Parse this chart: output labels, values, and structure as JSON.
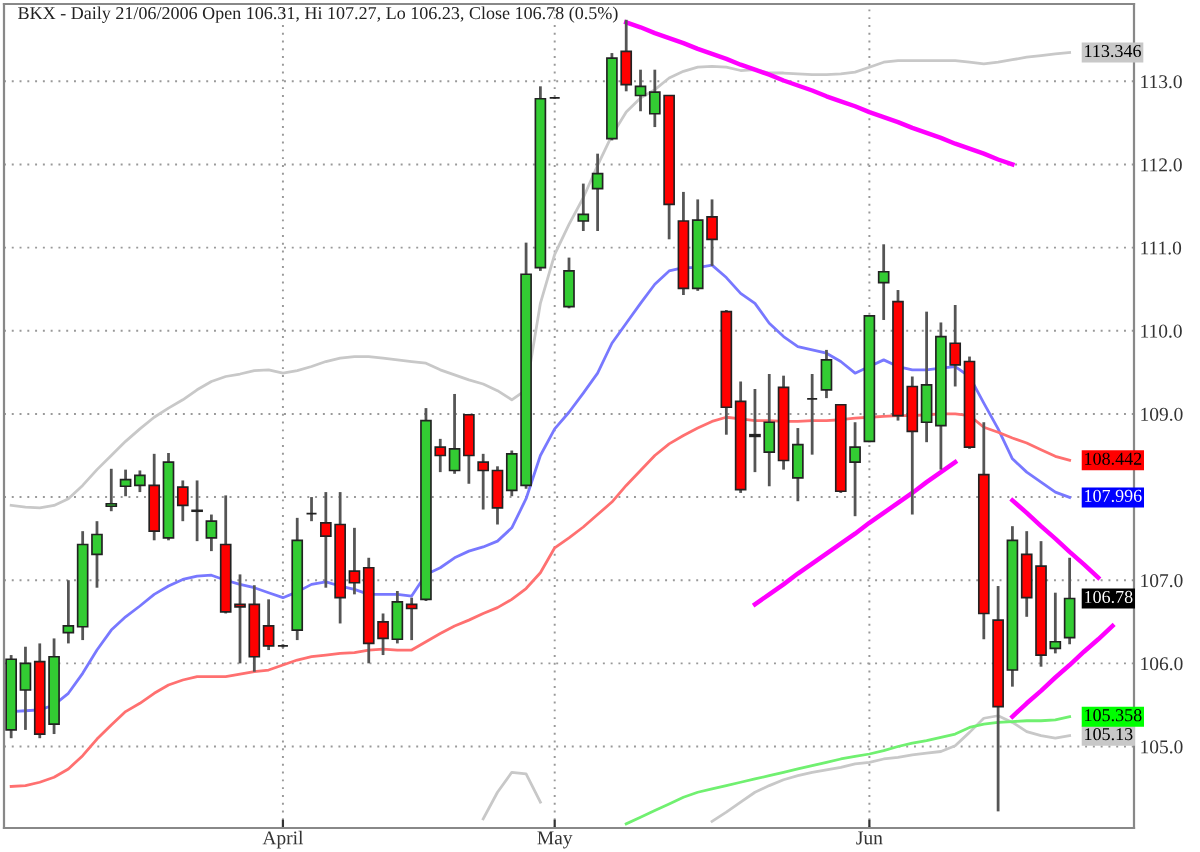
{
  "chart_data": {
    "type": "candlestick",
    "title": "BKX - Daily 21/06/2006 Open 106.31, Hi 107.27, Lo 106.23, Close 106.78 (0.5%)",
    "categories": [
      null,
      null,
      null,
      null,
      null,
      null,
      null,
      null,
      null,
      null,
      null,
      null,
      null,
      null,
      null,
      null,
      null,
      null,
      null,
      "April",
      null,
      null,
      null,
      null,
      null,
      null,
      null,
      null,
      null,
      null,
      null,
      null,
      null,
      null,
      null,
      null,
      null,
      null,
      "May",
      null,
      null,
      null,
      null,
      null,
      null,
      null,
      null,
      null,
      null,
      null,
      null,
      null,
      null,
      null,
      null,
      null,
      null,
      null,
      null,
      null,
      "Jun",
      null,
      null,
      null,
      null,
      null,
      null,
      null,
      null,
      null,
      null,
      null,
      null,
      null,
      null,
      null,
      null,
      null,
      null
    ],
    "ohlc": [
      [
        105.2,
        106.1,
        105.1,
        106.05
      ],
      [
        105.68,
        106.2,
        105.2,
        106.0
      ],
      [
        106.02,
        106.24,
        105.1,
        105.15
      ],
      [
        105.27,
        106.3,
        105.15,
        106.08
      ],
      [
        106.37,
        107.0,
        106.24,
        106.45
      ],
      [
        106.44,
        107.59,
        106.28,
        107.43
      ],
      [
        107.31,
        107.71,
        106.91,
        107.55
      ],
      [
        107.89,
        108.34,
        107.83,
        107.92
      ],
      [
        108.13,
        108.33,
        108.01,
        108.21
      ],
      [
        108.14,
        108.32,
        108.06,
        108.26
      ],
      [
        108.14,
        108.52,
        107.48,
        107.59
      ],
      [
        107.51,
        108.53,
        107.48,
        108.42
      ],
      [
        108.12,
        108.2,
        107.71,
        107.9
      ],
      [
        107.84,
        108.2,
        107.47,
        107.83
      ],
      [
        107.51,
        107.79,
        107.35,
        107.71
      ],
      [
        107.43,
        108.02,
        106.6,
        106.62
      ],
      [
        106.71,
        107.07,
        106.0,
        106.68
      ],
      [
        106.71,
        106.94,
        105.9,
        106.08
      ],
      [
        106.45,
        106.77,
        106.16,
        106.21
      ],
      [
        106.21,
        106.23,
        106.19,
        106.21
      ],
      [
        106.4,
        107.75,
        106.28,
        107.48
      ],
      [
        107.8,
        108.0,
        107.71,
        107.8
      ],
      [
        107.69,
        108.06,
        106.91,
        107.53
      ],
      [
        107.67,
        108.06,
        106.48,
        106.79
      ],
      [
        107.11,
        107.63,
        106.83,
        106.97
      ],
      [
        107.15,
        107.27,
        106.0,
        106.24
      ],
      [
        106.5,
        106.6,
        106.1,
        106.3
      ],
      [
        106.29,
        106.87,
        106.24,
        106.74
      ],
      [
        106.71,
        106.79,
        106.28,
        106.66
      ],
      [
        106.77,
        109.07,
        106.75,
        108.92
      ],
      [
        108.6,
        108.7,
        108.3,
        108.5
      ],
      [
        108.32,
        109.24,
        108.28,
        108.58
      ],
      [
        108.99,
        109.0,
        108.16,
        108.5
      ],
      [
        108.42,
        108.52,
        107.85,
        108.32
      ],
      [
        108.32,
        108.37,
        107.67,
        107.87
      ],
      [
        108.08,
        108.56,
        108.01,
        108.52
      ],
      [
        108.14,
        111.06,
        108.1,
        110.68
      ],
      [
        110.76,
        112.94,
        110.72,
        112.79
      ],
      [
        112.8,
        112.81,
        112.79,
        112.8
      ],
      [
        110.29,
        110.88,
        110.27,
        110.72
      ],
      [
        111.32,
        111.77,
        111.2,
        111.4
      ],
      [
        111.71,
        112.13,
        111.2,
        111.89
      ],
      [
        112.31,
        113.34,
        112.29,
        113.28
      ],
      [
        113.36,
        113.74,
        112.88,
        112.96
      ],
      [
        112.83,
        113.14,
        112.64,
        112.94
      ],
      [
        112.61,
        113.14,
        112.45,
        112.87
      ],
      [
        112.83,
        112.83,
        111.1,
        111.52
      ],
      [
        111.32,
        111.67,
        110.43,
        110.51
      ],
      [
        110.51,
        111.58,
        110.48,
        111.33
      ],
      [
        111.37,
        111.58,
        110.78,
        111.1
      ],
      [
        110.23,
        110.25,
        108.75,
        109.08
      ],
      [
        109.15,
        109.39,
        108.05,
        108.09
      ],
      [
        108.75,
        109.3,
        108.3,
        108.73
      ],
      [
        108.54,
        109.48,
        108.13,
        108.9
      ],
      [
        109.32,
        109.46,
        108.33,
        108.44
      ],
      [
        108.23,
        108.83,
        107.95,
        108.63
      ],
      [
        109.18,
        109.48,
        108.51,
        109.18
      ],
      [
        109.29,
        109.77,
        109.19,
        109.65
      ],
      [
        109.11,
        109.11,
        108.05,
        108.07
      ],
      [
        108.42,
        108.9,
        107.77,
        108.6
      ],
      [
        108.67,
        110.18,
        108.66,
        110.18
      ],
      [
        110.58,
        111.04,
        110.13,
        110.71
      ],
      [
        110.35,
        110.49,
        108.92,
        108.98
      ],
      [
        109.33,
        109.45,
        107.79,
        108.79
      ],
      [
        108.9,
        110.23,
        108.66,
        109.35
      ],
      [
        108.86,
        110.1,
        108.33,
        109.93
      ],
      [
        109.85,
        110.31,
        109.33,
        109.59
      ],
      [
        109.63,
        109.69,
        108.58,
        108.6
      ],
      [
        108.27,
        108.9,
        106.29,
        106.6
      ],
      [
        106.52,
        106.93,
        104.22,
        105.48
      ],
      [
        105.92,
        107.65,
        105.72,
        107.48
      ],
      [
        107.31,
        107.59,
        106.56,
        106.79
      ],
      [
        107.17,
        107.47,
        105.96,
        106.1
      ],
      [
        106.18,
        106.85,
        106.12,
        106.26
      ],
      [
        106.31,
        107.27,
        106.23,
        106.78
      ],
      null,
      null,
      null,
      null
    ],
    "series": [
      {
        "type": "line",
        "color": "#c8c8c8",
        "values": [
          107.9,
          107.88,
          107.87,
          107.9,
          107.98,
          108.14,
          108.33,
          108.5,
          108.67,
          108.82,
          108.96,
          109.07,
          109.17,
          109.29,
          109.39,
          109.45,
          109.48,
          109.52,
          109.53,
          109.49,
          109.52,
          109.57,
          109.63,
          109.67,
          109.69,
          109.69,
          109.67,
          109.65,
          109.63,
          109.61,
          109.53,
          109.47,
          109.41,
          109.36,
          109.28,
          109.17,
          109.29,
          110.33,
          110.92,
          111.28,
          111.6,
          111.99,
          112.35,
          112.63,
          112.8,
          112.9,
          113.04,
          113.12,
          113.17,
          113.18,
          113.17,
          113.13,
          113.14,
          113.1,
          113.1,
          113.09,
          113.08,
          113.08,
          113.09,
          113.11,
          113.17,
          113.23,
          113.25,
          113.25,
          113.25,
          113.25,
          113.25,
          113.23,
          113.21,
          113.23,
          113.26,
          113.29,
          113.31,
          113.33,
          113.346,
          null,
          null,
          null,
          null
        ],
        "value_labels": [
          null,
          null,
          null,
          null,
          null,
          null,
          null,
          null,
          null,
          null,
          null,
          null,
          null,
          null,
          null,
          null,
          null,
          null,
          null,
          null,
          null,
          null,
          null,
          null,
          null,
          null,
          null,
          null,
          null,
          null,
          null,
          null,
          null,
          null,
          null,
          null,
          null,
          null,
          null,
          null,
          null,
          null,
          null,
          null,
          null,
          null,
          null,
          null,
          null,
          null,
          null,
          null,
          null,
          null,
          null,
          null,
          null,
          null,
          null,
          null,
          null,
          null,
          null,
          null,
          null,
          null,
          null,
          null,
          null,
          null,
          null,
          null,
          null,
          null,
          "113.346",
          null,
          null,
          null,
          null
        ]
      },
      {
        "type": "line",
        "color": "#c8c8c8",
        "values": [
          null,
          null,
          null,
          null,
          null,
          null,
          null,
          null,
          null,
          null,
          null,
          null,
          null,
          null,
          null,
          null,
          null,
          null,
          null,
          null,
          null,
          null,
          null,
          null,
          null,
          null,
          null,
          null,
          null,
          null,
          null,
          null,
          null,
          104.13,
          104.45,
          104.69,
          104.67,
          104.33,
          null,
          null,
          null,
          null,
          null,
          null,
          null,
          null,
          null,
          null,
          null,
          104.1,
          104.21,
          104.33,
          104.45,
          104.53,
          104.6,
          104.65,
          104.69,
          104.72,
          104.75,
          104.79,
          104.81,
          104.85,
          104.87,
          104.9,
          104.92,
          104.94,
          105.01,
          105.17,
          105.34,
          105.37,
          105.29,
          105.18,
          105.13,
          105.1,
          105.13,
          null,
          null,
          null,
          null
        ],
        "value_labels": [
          null,
          null,
          null,
          null,
          null,
          null,
          null,
          null,
          null,
          null,
          null,
          null,
          null,
          null,
          null,
          null,
          null,
          null,
          null,
          null,
          null,
          null,
          null,
          null,
          null,
          null,
          null,
          null,
          null,
          null,
          null,
          null,
          null,
          null,
          null,
          null,
          null,
          null,
          null,
          null,
          null,
          null,
          null,
          null,
          null,
          null,
          null,
          null,
          null,
          null,
          null,
          null,
          null,
          null,
          null,
          null,
          null,
          null,
          null,
          null,
          null,
          null,
          null,
          null,
          null,
          null,
          null,
          null,
          null,
          null,
          null,
          null,
          null,
          null,
          "105.13",
          null,
          null,
          null,
          null
        ]
      },
      {
        "type": "line",
        "color": "#7878ff",
        "values": [
          105.42,
          105.43,
          105.44,
          105.5,
          105.64,
          105.88,
          106.16,
          106.4,
          106.56,
          106.69,
          106.83,
          106.93,
          107.01,
          107.05,
          107.06,
          107.0,
          106.95,
          106.91,
          106.85,
          106.79,
          106.86,
          106.95,
          106.98,
          106.93,
          106.89,
          106.83,
          106.83,
          106.83,
          106.81,
          107.07,
          107.15,
          107.27,
          107.35,
          107.4,
          107.47,
          107.63,
          107.98,
          108.5,
          108.82,
          109.02,
          109.25,
          109.49,
          109.85,
          110.09,
          110.33,
          110.56,
          110.72,
          110.76,
          110.76,
          110.79,
          110.64,
          110.45,
          110.33,
          110.09,
          109.93,
          109.81,
          109.77,
          109.73,
          109.63,
          109.49,
          109.57,
          109.65,
          109.57,
          109.53,
          109.53,
          109.55,
          109.57,
          109.45,
          109.13,
          108.82,
          108.46,
          108.3,
          108.18,
          108.06,
          107.996,
          null,
          null,
          null,
          null
        ],
        "value_labels": [
          null,
          null,
          null,
          null,
          null,
          null,
          null,
          null,
          null,
          null,
          null,
          null,
          null,
          null,
          null,
          null,
          null,
          null,
          null,
          null,
          null,
          null,
          null,
          null,
          null,
          null,
          null,
          null,
          null,
          null,
          null,
          null,
          null,
          null,
          null,
          null,
          null,
          null,
          null,
          null,
          null,
          null,
          null,
          null,
          null,
          null,
          null,
          null,
          null,
          null,
          null,
          null,
          null,
          null,
          null,
          null,
          null,
          null,
          null,
          null,
          null,
          null,
          null,
          null,
          null,
          null,
          null,
          null,
          null,
          null,
          null,
          null,
          null,
          null,
          "107.996",
          null,
          null,
          null,
          null
        ]
      },
      {
        "type": "line",
        "color": "#ff7070",
        "values": [
          104.52,
          104.53,
          104.57,
          104.63,
          104.73,
          104.89,
          105.09,
          105.26,
          105.42,
          105.52,
          105.64,
          105.74,
          105.8,
          105.84,
          105.84,
          105.84,
          105.87,
          105.9,
          105.92,
          105.98,
          106.04,
          106.08,
          106.1,
          106.12,
          106.13,
          106.16,
          106.17,
          106.16,
          106.16,
          106.26,
          106.36,
          106.45,
          106.52,
          106.6,
          106.67,
          106.77,
          106.9,
          107.09,
          107.39,
          107.51,
          107.64,
          107.79,
          107.94,
          108.14,
          108.32,
          108.5,
          108.64,
          108.74,
          108.83,
          108.91,
          108.96,
          108.94,
          108.92,
          108.92,
          108.91,
          108.91,
          108.92,
          108.92,
          108.93,
          108.95,
          108.96,
          108.97,
          108.98,
          108.98,
          108.99,
          109.0,
          109.0,
          108.98,
          108.84,
          108.78,
          108.71,
          108.65,
          108.57,
          108.49,
          108.442,
          null,
          null,
          null,
          null
        ],
        "value_labels": [
          null,
          null,
          null,
          null,
          null,
          null,
          null,
          null,
          null,
          null,
          null,
          null,
          null,
          null,
          null,
          null,
          null,
          null,
          null,
          null,
          null,
          null,
          null,
          null,
          null,
          null,
          null,
          null,
          null,
          null,
          null,
          null,
          null,
          null,
          null,
          null,
          null,
          null,
          null,
          null,
          null,
          null,
          null,
          null,
          null,
          null,
          null,
          null,
          null,
          null,
          null,
          null,
          null,
          null,
          null,
          null,
          null,
          null,
          null,
          null,
          null,
          null,
          null,
          null,
          null,
          null,
          null,
          null,
          null,
          null,
          null,
          null,
          null,
          null,
          "108.442",
          null,
          null,
          null,
          null
        ]
      },
      {
        "type": "line",
        "color": "#70f070",
        "values": [
          null,
          null,
          null,
          null,
          null,
          null,
          null,
          null,
          null,
          null,
          null,
          null,
          null,
          null,
          null,
          null,
          null,
          null,
          null,
          null,
          null,
          null,
          null,
          null,
          null,
          null,
          null,
          null,
          null,
          null,
          null,
          null,
          null,
          null,
          null,
          null,
          null,
          null,
          null,
          null,
          null,
          null,
          null,
          104.07,
          104.15,
          104.23,
          104.31,
          104.39,
          104.45,
          104.49,
          104.53,
          104.57,
          104.61,
          104.65,
          104.69,
          104.73,
          104.77,
          104.81,
          104.85,
          104.88,
          104.91,
          104.95,
          105.0,
          105.04,
          105.07,
          105.11,
          105.15,
          105.23,
          105.27,
          105.29,
          105.3,
          105.31,
          105.31,
          105.32,
          105.358,
          null,
          null,
          null,
          null
        ],
        "value_labels": [
          null,
          null,
          null,
          null,
          null,
          null,
          null,
          null,
          null,
          null,
          null,
          null,
          null,
          null,
          null,
          null,
          null,
          null,
          null,
          null,
          null,
          null,
          null,
          null,
          null,
          null,
          null,
          null,
          null,
          null,
          null,
          null,
          null,
          null,
          null,
          null,
          null,
          null,
          null,
          null,
          null,
          null,
          null,
          null,
          null,
          null,
          null,
          null,
          null,
          null,
          null,
          null,
          null,
          null,
          null,
          null,
          null,
          null,
          null,
          null,
          null,
          null,
          null,
          null,
          null,
          null,
          null,
          null,
          null,
          null,
          null,
          null,
          null,
          null,
          "105.358",
          null,
          null,
          null,
          null
        ]
      },
      {
        "type": "line",
        "color": "#ff00ff",
        "values": [
          null,
          null,
          null,
          null,
          null,
          null,
          null,
          null,
          null,
          null,
          null,
          null,
          null,
          null,
          null,
          null,
          null,
          null,
          null,
          null,
          null,
          null,
          null,
          null,
          null,
          null,
          null,
          null,
          null,
          null,
          null,
          null,
          null,
          null,
          null,
          null,
          null,
          null,
          null,
          null,
          null,
          null,
          null,
          113.71,
          113.65,
          113.58,
          113.52,
          113.46,
          113.39,
          113.33,
          113.27,
          113.2,
          113.14,
          113.08,
          113.01,
          112.95,
          112.89,
          112.82,
          112.76,
          112.7,
          112.63,
          112.57,
          112.51,
          112.44,
          112.38,
          112.32,
          112.25,
          112.19,
          112.13,
          112.06,
          112.0,
          null,
          null,
          null,
          null,
          null,
          null,
          null,
          null
        ]
      },
      {
        "type": "line",
        "color": "#ff00ff",
        "values": [
          null,
          null,
          null,
          null,
          null,
          null,
          null,
          null,
          null,
          null,
          null,
          null,
          null,
          null,
          null,
          null,
          null,
          null,
          null,
          null,
          null,
          null,
          null,
          null,
          null,
          null,
          null,
          null,
          null,
          null,
          null,
          null,
          null,
          null,
          null,
          null,
          null,
          null,
          null,
          null,
          null,
          null,
          null,
          null,
          null,
          null,
          null,
          null,
          null,
          null,
          null,
          null,
          106.71,
          106.83,
          106.95,
          107.08,
          107.2,
          107.32,
          107.44,
          107.56,
          107.69,
          107.81,
          107.93,
          108.05,
          108.18,
          108.3,
          108.42,
          null,
          null,
          null,
          null,
          null,
          null,
          null,
          null,
          null,
          null,
          null,
          null
        ]
      },
      {
        "type": "line",
        "color": "#ff00ff",
        "values": [
          null,
          null,
          null,
          null,
          null,
          null,
          null,
          null,
          null,
          null,
          null,
          null,
          null,
          null,
          null,
          null,
          null,
          null,
          null,
          null,
          null,
          null,
          null,
          null,
          null,
          null,
          null,
          null,
          null,
          null,
          null,
          null,
          null,
          null,
          null,
          null,
          null,
          null,
          null,
          null,
          null,
          null,
          null,
          null,
          null,
          null,
          null,
          null,
          null,
          null,
          null,
          null,
          null,
          null,
          null,
          null,
          null,
          null,
          null,
          null,
          null,
          null,
          null,
          null,
          null,
          null,
          null,
          null,
          null,
          null,
          107.96,
          107.81,
          107.65,
          107.5,
          107.34,
          107.19,
          107.03,
          null,
          null
        ]
      },
      {
        "type": "line",
        "color": "#ff00ff",
        "values": [
          null,
          null,
          null,
          null,
          null,
          null,
          null,
          null,
          null,
          null,
          null,
          null,
          null,
          null,
          null,
          null,
          null,
          null,
          null,
          null,
          null,
          null,
          null,
          null,
          null,
          null,
          null,
          null,
          null,
          null,
          null,
          null,
          null,
          null,
          null,
          null,
          null,
          null,
          null,
          null,
          null,
          null,
          null,
          null,
          null,
          null,
          null,
          null,
          null,
          null,
          null,
          null,
          null,
          null,
          null,
          null,
          null,
          null,
          null,
          null,
          null,
          null,
          null,
          null,
          null,
          null,
          null,
          null,
          null,
          null,
          105.36,
          105.52,
          105.67,
          105.83,
          105.98,
          106.14,
          106.29,
          106.45,
          null
        ]
      }
    ],
    "ylim": [
      104.02,
      113.93
    ],
    "yticks": [
      {
        "value": 105,
        "label": "105.0"
      },
      {
        "value": 106,
        "label": "106.0"
      },
      {
        "value": 107,
        "label": "107.0"
      },
      {
        "value": 108,
        "label": null
      },
      {
        "value": 109,
        "label": "109.0"
      },
      {
        "value": 110,
        "label": "110.0"
      },
      {
        "value": 111,
        "label": "111.0"
      },
      {
        "value": 112,
        "label": "112.0"
      },
      {
        "value": 113,
        "label": "113.0"
      }
    ],
    "annotations": [
      "106.78"
    ],
    "grid": true
  }
}
